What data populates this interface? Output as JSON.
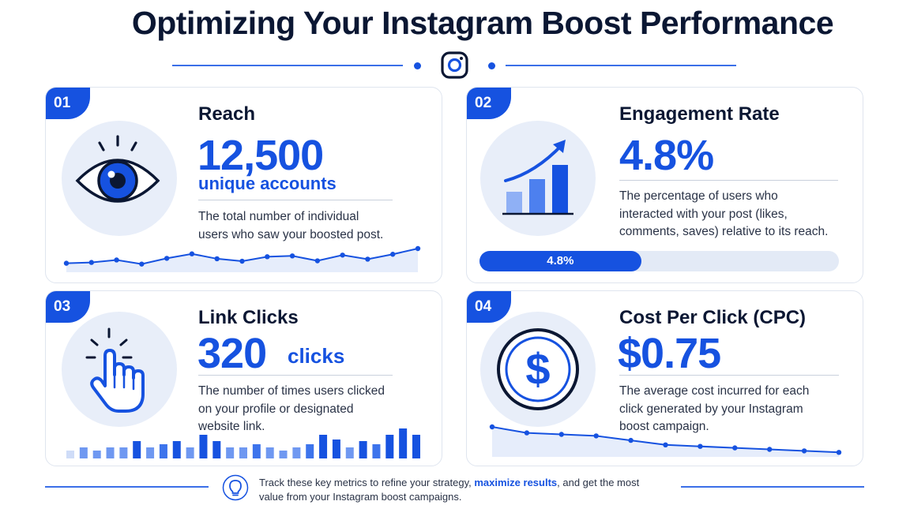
{
  "title": "Optimizing Your Instagram Boost Performance",
  "accent_color": "#1652e0",
  "header_icon": "instagram-icon",
  "cards": [
    {
      "number": "01",
      "title": "Reach",
      "value": "12,500",
      "unit": "unique accounts",
      "description_lines": [
        "The total number of individual",
        "users who saw your boosted post."
      ],
      "icon": "eye-icon",
      "trend_points": [
        22,
        24,
        30,
        20,
        34,
        45,
        33,
        27,
        38,
        40,
        28,
        42,
        32,
        44,
        58
      ]
    },
    {
      "number": "02",
      "title": "Engagement Rate",
      "value": "4.8%",
      "description_lines": [
        "The percentage of users who",
        "interacted with your post (likes,",
        "comments, saves) relative to its reach."
      ],
      "icon": "growth-chart-icon",
      "progress_label": "4.8%",
      "progress_fraction": 0.45
    },
    {
      "number": "03",
      "title": "Link Clicks",
      "value": "320",
      "unit": "clicks",
      "description_lines": [
        "The number of times users clicked",
        "on your profile or designated",
        "website link."
      ],
      "icon": "pointer-hand-icon",
      "bar_heights": [
        10,
        14,
        10,
        14,
        14,
        22,
        14,
        18,
        22,
        14,
        30,
        22,
        14,
        14,
        18,
        14,
        10,
        14,
        18,
        30,
        24,
        14,
        22,
        18,
        30,
        38,
        30
      ]
    },
    {
      "number": "04",
      "title": "Cost Per Click (CPC)",
      "value": "$0.75",
      "description_lines": [
        "The average cost incurred for each",
        "click generated by your Instagram",
        "boost campaign."
      ],
      "icon": "dollar-coin-icon",
      "trend_points": [
        40,
        32,
        30,
        28,
        22,
        16,
        14,
        12,
        10,
        8,
        6
      ]
    }
  ],
  "footer": {
    "icon": "lightbulb-icon",
    "line1_start": "Track these key metrics to refine your strategy, ",
    "line1_emphasis": "maximize results",
    "line1_end": ", and get the most",
    "line2": "value from your Instagram boost campaigns."
  }
}
